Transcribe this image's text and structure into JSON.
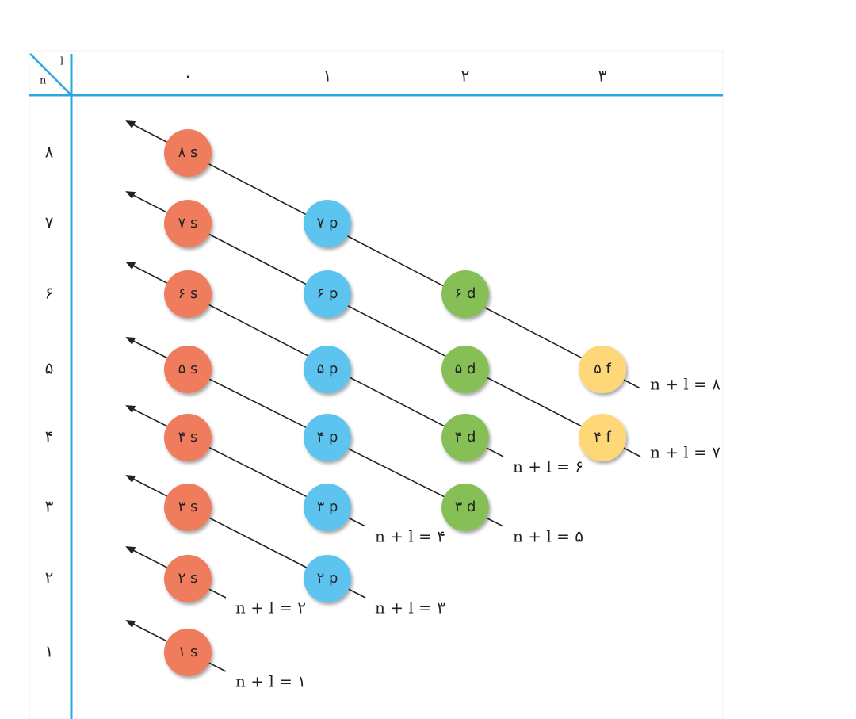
{
  "corner": {
    "l": "l",
    "n": "n"
  },
  "columns": [
    "۰",
    "۱",
    "۲",
    "۳"
  ],
  "rows": [
    {
      "label": "۸",
      "orbitals": [
        "۸ s"
      ]
    },
    {
      "label": "۷",
      "orbitals": [
        "۷ s",
        "۷ p"
      ]
    },
    {
      "label": "۶",
      "orbitals": [
        "۶ s",
        "۶ p",
        "۶ d"
      ]
    },
    {
      "label": "۵",
      "orbitals": [
        "۵ s",
        "۵ p",
        "۵ d",
        "۵ f"
      ]
    },
    {
      "label": "۴",
      "orbitals": [
        "۴ s",
        "۴ p",
        "۴ d",
        "۴ f"
      ]
    },
    {
      "label": "۳",
      "orbitals": [
        "۳ s",
        "۳ p",
        "۳ d"
      ]
    },
    {
      "label": "۲",
      "orbitals": [
        "۲ s",
        "۲ p"
      ]
    },
    {
      "label": "۱",
      "orbitals": [
        "۱ s"
      ]
    }
  ],
  "diagonals": [
    "n + l = ۱",
    "n + l = ۲",
    "n + l = ۳",
    "n + l = ۴",
    "n + l = ۵",
    "n + l = ۶",
    "n + l = ۷",
    "n + l = ۸"
  ]
}
